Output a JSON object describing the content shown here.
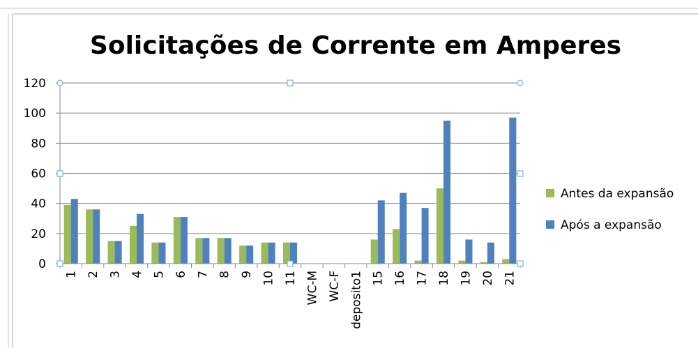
{
  "chart_data": {
    "type": "bar",
    "title": "Solicitações de Corrente em Amperes",
    "categories": [
      "1",
      "2",
      "3",
      "4",
      "5",
      "6",
      "7",
      "8",
      "9",
      "10",
      "11",
      "WC-M",
      "WC-F",
      "deposito1",
      "15",
      "16",
      "17",
      "18",
      "19",
      "20",
      "21"
    ],
    "series": [
      {
        "name": "Antes da expansão",
        "color": "#9bbb59",
        "values": [
          39,
          36,
          15,
          25,
          14,
          31,
          17,
          17,
          12,
          14,
          14,
          null,
          null,
          null,
          16,
          23,
          2,
          50,
          2,
          1,
          3
        ]
      },
      {
        "name": "Após a expansão",
        "color": "#4f81bd",
        "values": [
          43,
          36,
          15,
          33,
          14,
          31,
          17,
          17,
          12,
          14,
          14,
          null,
          null,
          null,
          42,
          47,
          37,
          95,
          16,
          14,
          97
        ]
      }
    ],
    "ylim": [
      0,
      120
    ],
    "yticks": [
      0,
      20,
      40,
      60,
      80,
      100,
      120
    ],
    "grid": true,
    "legend": "right"
  }
}
